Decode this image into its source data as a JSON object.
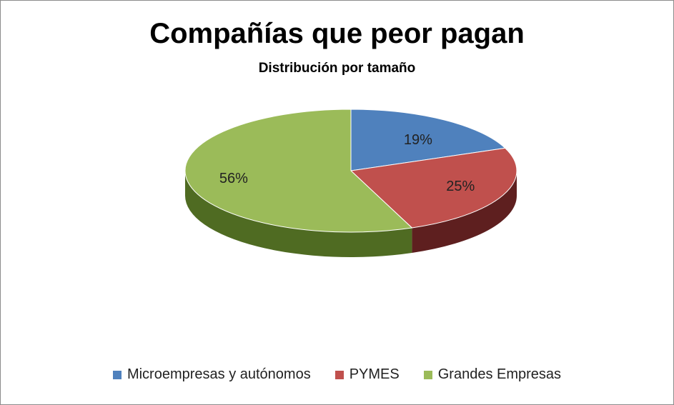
{
  "chart_data": {
    "type": "pie",
    "title": "Compañías que peor pagan",
    "subtitle": "Distribución por tamaño",
    "categories": [
      "Microempresas y autónomos",
      "PYMES",
      "Grandes Empresas"
    ],
    "values": [
      19,
      25,
      56
    ],
    "labels": [
      "19%",
      "25%",
      "56%"
    ],
    "colors": [
      "#4f81bd",
      "#c0504d",
      "#9bbb59"
    ],
    "side_colors": [
      "#2c4d75",
      "#5e1f1f",
      "#4f6b22"
    ],
    "legend_position": "bottom",
    "style": "3d"
  }
}
